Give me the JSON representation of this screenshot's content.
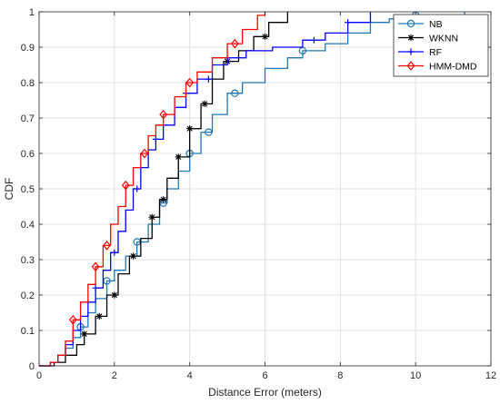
{
  "chart_data": {
    "type": "line",
    "subtype": "step-cdf",
    "title": "",
    "xlabel": "Distance Error (meters)",
    "ylabel": "CDF",
    "xlim": [
      0,
      12
    ],
    "ylim": [
      0,
      1
    ],
    "xticks": [
      0,
      2,
      4,
      6,
      8,
      10,
      12
    ],
    "yticks": [
      0,
      0.1,
      0.2,
      0.3,
      0.4,
      0.5,
      0.6,
      0.7,
      0.8,
      0.9,
      1
    ],
    "xtick_labels": [
      "0",
      "2",
      "4",
      "6",
      "8",
      "10",
      "12"
    ],
    "ytick_labels": [
      "0",
      "0.1",
      "0.2",
      "0.3",
      "0.4",
      "0.5",
      "0.6",
      "0.7",
      "0.8",
      "0.9",
      "1"
    ],
    "grid": true,
    "legend_position": "top-right",
    "series": [
      {
        "name": "NB",
        "color": "#1f77b4",
        "marker": "circle",
        "points": [
          [
            0,
            0
          ],
          [
            0.3,
            0.01
          ],
          [
            0.5,
            0.03
          ],
          [
            0.7,
            0.05
          ],
          [
            0.9,
            0.08
          ],
          [
            1.1,
            0.11
          ],
          [
            1.3,
            0.15
          ],
          [
            1.5,
            0.19
          ],
          [
            1.8,
            0.24
          ],
          [
            2.0,
            0.27
          ],
          [
            2.3,
            0.31
          ],
          [
            2.6,
            0.35
          ],
          [
            2.9,
            0.4
          ],
          [
            3.2,
            0.46
          ],
          [
            3.4,
            0.5
          ],
          [
            3.7,
            0.55
          ],
          [
            4.0,
            0.6
          ],
          [
            4.3,
            0.66
          ],
          [
            4.6,
            0.71
          ],
          [
            5.0,
            0.77
          ],
          [
            5.4,
            0.8
          ],
          [
            6.0,
            0.84
          ],
          [
            6.6,
            0.87
          ],
          [
            7.0,
            0.89
          ],
          [
            7.6,
            0.91
          ],
          [
            8.2,
            0.94
          ],
          [
            8.8,
            0.97
          ],
          [
            9.3,
            0.98
          ],
          [
            10.0,
            0.99
          ],
          [
            11.3,
            1.0
          ]
        ],
        "markers_x": [
          1.1,
          1.8,
          2.6,
          3.3,
          4.0,
          4.5,
          5.2,
          7.0,
          10.0
        ]
      },
      {
        "name": "WKNN",
        "color": "#000000",
        "marker": "asterisk",
        "points": [
          [
            0,
            0
          ],
          [
            0.4,
            0.01
          ],
          [
            0.7,
            0.03
          ],
          [
            1.0,
            0.06
          ],
          [
            1.2,
            0.09
          ],
          [
            1.5,
            0.14
          ],
          [
            1.8,
            0.2
          ],
          [
            2.1,
            0.26
          ],
          [
            2.4,
            0.31
          ],
          [
            2.7,
            0.36
          ],
          [
            3.0,
            0.42
          ],
          [
            3.2,
            0.47
          ],
          [
            3.4,
            0.53
          ],
          [
            3.7,
            0.59
          ],
          [
            4.0,
            0.67
          ],
          [
            4.3,
            0.74
          ],
          [
            4.6,
            0.81
          ],
          [
            4.9,
            0.86
          ],
          [
            5.3,
            0.89
          ],
          [
            5.7,
            0.93
          ],
          [
            6.1,
            0.97
          ],
          [
            6.6,
            1.0
          ]
        ],
        "markers_x": [
          1.2,
          1.6,
          2.0,
          2.5,
          3.0,
          3.3,
          3.7,
          4.0,
          4.4,
          5.0,
          6.0
        ]
      },
      {
        "name": "RF",
        "color": "#0000ff",
        "marker": "plus",
        "points": [
          [
            0,
            0
          ],
          [
            0.3,
            0.01
          ],
          [
            0.5,
            0.03
          ],
          [
            0.7,
            0.06
          ],
          [
            0.9,
            0.1
          ],
          [
            1.1,
            0.14
          ],
          [
            1.3,
            0.18
          ],
          [
            1.5,
            0.22
          ],
          [
            1.7,
            0.27
          ],
          [
            1.9,
            0.32
          ],
          [
            2.1,
            0.38
          ],
          [
            2.3,
            0.44
          ],
          [
            2.5,
            0.5
          ],
          [
            2.7,
            0.56
          ],
          [
            2.9,
            0.61
          ],
          [
            3.1,
            0.64
          ],
          [
            3.3,
            0.68
          ],
          [
            3.6,
            0.73
          ],
          [
            3.9,
            0.77
          ],
          [
            4.2,
            0.81
          ],
          [
            4.6,
            0.85
          ],
          [
            5.0,
            0.87
          ],
          [
            5.5,
            0.89
          ],
          [
            6.2,
            0.9
          ],
          [
            7.0,
            0.92
          ],
          [
            7.6,
            0.94
          ],
          [
            8.2,
            0.97
          ],
          [
            8.8,
            1.0
          ]
        ],
        "markers_x": [
          1.5,
          2.0,
          2.6,
          3.1,
          3.9,
          4.5,
          5.0,
          7.3,
          8.2
        ]
      },
      {
        "name": "HMM-DMD",
        "color": "#ff0000",
        "marker": "diamond",
        "points": [
          [
            0,
            0
          ],
          [
            0.3,
            0.01
          ],
          [
            0.5,
            0.03
          ],
          [
            0.7,
            0.07
          ],
          [
            0.9,
            0.13
          ],
          [
            1.1,
            0.18
          ],
          [
            1.3,
            0.23
          ],
          [
            1.5,
            0.28
          ],
          [
            1.7,
            0.34
          ],
          [
            1.9,
            0.4
          ],
          [
            2.1,
            0.45
          ],
          [
            2.3,
            0.51
          ],
          [
            2.5,
            0.56
          ],
          [
            2.7,
            0.6
          ],
          [
            2.9,
            0.65
          ],
          [
            3.1,
            0.68
          ],
          [
            3.3,
            0.71
          ],
          [
            3.6,
            0.76
          ],
          [
            3.9,
            0.8
          ],
          [
            4.2,
            0.83
          ],
          [
            4.6,
            0.87
          ],
          [
            5.0,
            0.91
          ],
          [
            5.4,
            0.95
          ],
          [
            5.8,
            0.99
          ],
          [
            6.0,
            1.0
          ]
        ],
        "markers_x": [
          0.9,
          1.5,
          1.8,
          2.3,
          2.8,
          3.3,
          4.0,
          5.2
        ]
      }
    ]
  }
}
